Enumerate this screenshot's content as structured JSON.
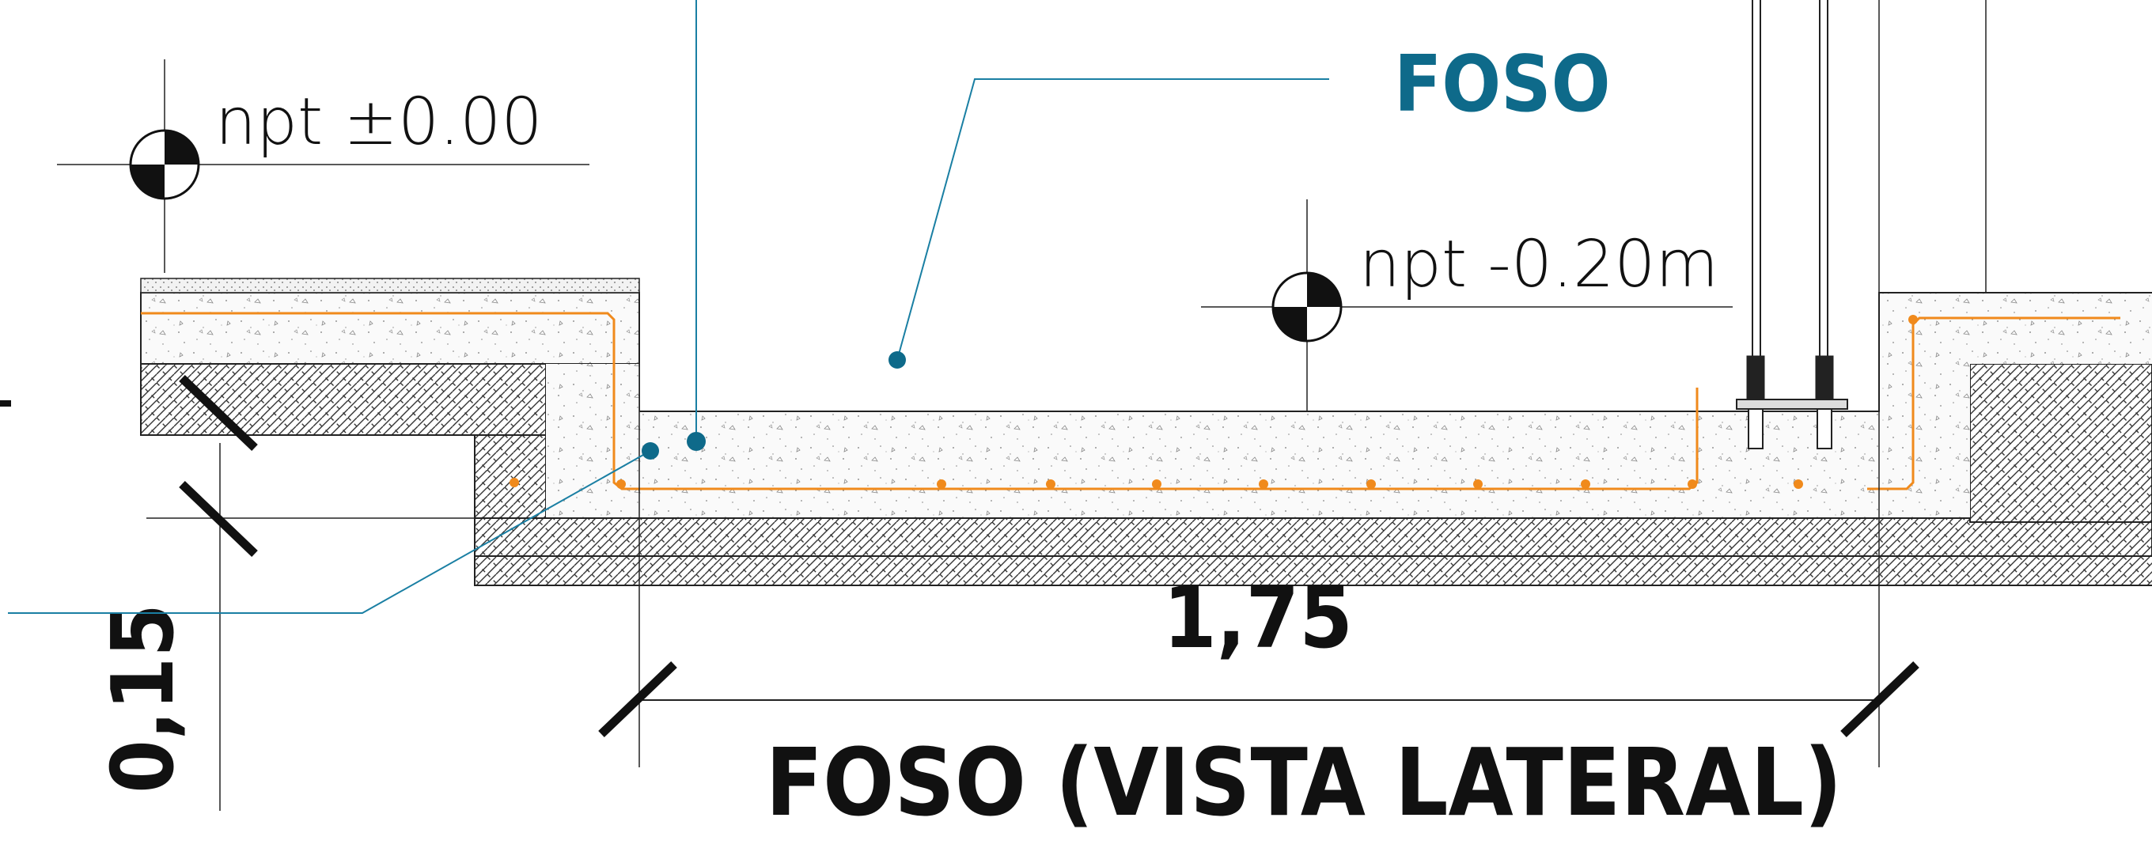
{
  "labels": {
    "pit_callout": "FOSO",
    "level_top": "npt ±0.00",
    "level_pit": "npt -0.20m",
    "dim_width": "1,75",
    "dim_depth": "0,15",
    "title": "FOSO (VISTA LATERAL)"
  },
  "colors": {
    "callout": "#0e6a8a",
    "rebar": "#f08a1c",
    "line": "#111111",
    "leader": "#1a7fa3"
  }
}
